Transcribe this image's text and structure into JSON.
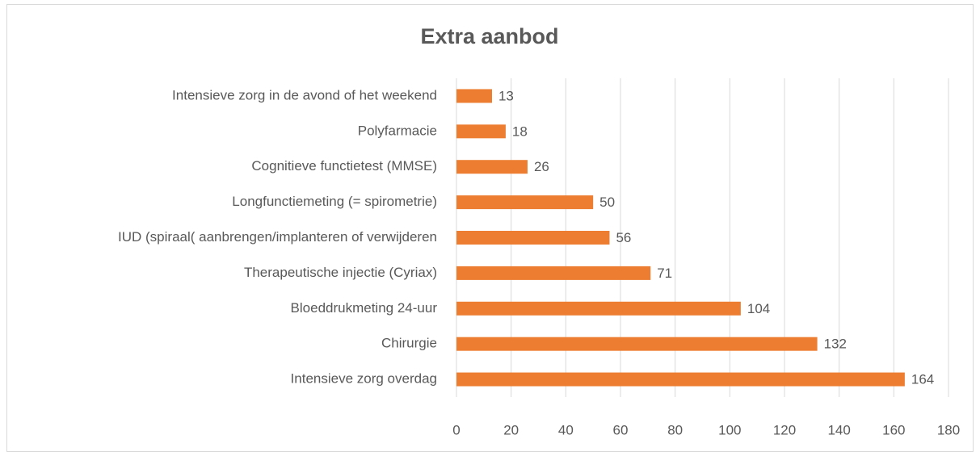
{
  "chart_data": {
    "type": "bar",
    "orientation": "horizontal",
    "title": "Extra aanbod",
    "categories": [
      "Intensieve zorg in de avond of het weekend",
      "Polyfarmacie",
      "Cognitieve functietest (MMSE)",
      "Longfunctiemeting (= spirometrie)",
      "IUD (spiraal( aanbrengen/implanteren of verwijderen",
      "Therapeutische injectie (Cyriax)",
      "Bloeddrukmeting 24-uur",
      "Chirurgie",
      "Intensieve zorg overdag"
    ],
    "values": [
      13,
      18,
      26,
      50,
      56,
      71,
      104,
      132,
      164
    ],
    "color": "#ed7d31",
    "xlim": [
      0,
      180
    ],
    "xticks": [
      0,
      20,
      40,
      60,
      80,
      100,
      120,
      140,
      160,
      180
    ],
    "grid": true
  }
}
